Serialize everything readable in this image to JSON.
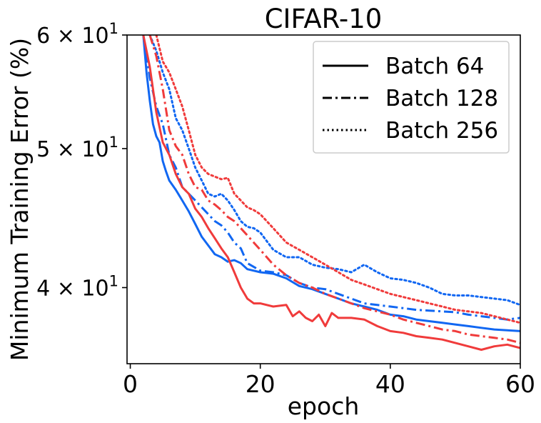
{
  "chart_data": {
    "type": "line",
    "title": "CIFAR-10",
    "xlabel": "epoch",
    "ylabel": "Minimum Training Error (%)",
    "xlim": [
      -0.5,
      60
    ],
    "ylim": [
      35.4,
      60
    ],
    "yscale": "log",
    "grid": false,
    "legend_position": "top-right",
    "x_ticks": [
      0,
      20,
      40,
      60
    ],
    "x_tick_labels": [
      "0",
      "20",
      "40",
      "60"
    ],
    "y_ticks": [
      40,
      50,
      60
    ],
    "y_tick_labels": [
      "4 × 10",
      "5 × 10",
      "6 × 10"
    ],
    "y_tick_exponent": "1",
    "legend": [
      {
        "label": "Batch 64",
        "style": "solid"
      },
      {
        "label": "Batch 128",
        "style": "dashdot"
      },
      {
        "label": "Batch 256",
        "style": "dotted"
      }
    ],
    "colors": {
      "blue": "#1167f2",
      "red": "#f03b3b"
    },
    "series": [
      {
        "color": "blue",
        "style": "solid",
        "x": [
          2,
          2.5,
          3,
          3.5,
          4,
          4.5,
          5,
          5.5,
          6,
          7,
          8,
          9,
          10,
          11,
          12,
          13,
          14,
          15,
          16,
          17,
          18,
          20,
          22,
          24,
          26,
          28,
          30,
          32,
          34,
          36,
          38,
          40,
          42,
          44,
          46,
          48,
          50,
          52,
          54,
          56,
          58,
          60
        ],
        "y": [
          60,
          56.5,
          54,
          52,
          51,
          50.5,
          49,
          48.2,
          47.5,
          46.8,
          46,
          45.2,
          44.3,
          43.4,
          42.8,
          42.2,
          42.0,
          41.7,
          41.8,
          41.6,
          41.2,
          41.0,
          40.9,
          40.6,
          40.1,
          39.9,
          39.6,
          39.3,
          39.0,
          38.8,
          38.6,
          38.3,
          38.2,
          38.0,
          37.9,
          37.8,
          37.7,
          37.6,
          37.5,
          37.4,
          37.35,
          37.3
        ]
      },
      {
        "color": "blue",
        "style": "dashdot",
        "x": [
          2,
          3,
          4,
          5,
          6,
          7,
          8,
          9,
          10,
          11,
          12,
          13,
          14,
          15,
          16,
          17,
          18,
          20,
          22,
          24,
          26,
          28,
          30,
          32,
          34,
          36,
          38,
          40,
          42,
          44,
          46,
          48,
          50,
          52,
          54,
          56,
          58,
          60
        ],
        "y": [
          60,
          56,
          53.5,
          52,
          49.5,
          48.5,
          47,
          46.5,
          46,
          45.5,
          45,
          44.5,
          44.2,
          43.7,
          43,
          42.6,
          41.6,
          41.1,
          41.0,
          40.8,
          40.3,
          40.0,
          39.9,
          39.6,
          39.3,
          39.0,
          38.9,
          38.8,
          38.7,
          38.6,
          38.55,
          38.5,
          38.45,
          38.3,
          38.2,
          38.1,
          38.0,
          38.1
        ]
      },
      {
        "color": "blue",
        "style": "dotted",
        "x": [
          3,
          4,
          5,
          6,
          7,
          8,
          9,
          10,
          11,
          12,
          13,
          14,
          15,
          16,
          17,
          18,
          19,
          20,
          22,
          24,
          26,
          28,
          30,
          32,
          34,
          36,
          38,
          40,
          42,
          44,
          46,
          48,
          50,
          52,
          54,
          56,
          58,
          60
        ],
        "y": [
          60,
          58.5,
          56.5,
          55,
          52.5,
          51.5,
          50,
          48.5,
          47.5,
          46.5,
          46.3,
          46.5,
          46.0,
          45.3,
          44.5,
          44.1,
          44.0,
          43.7,
          42.5,
          42.0,
          42.0,
          41.5,
          41.3,
          41.2,
          41.0,
          41.5,
          41.0,
          40.6,
          40.5,
          40.3,
          40.0,
          39.6,
          39.5,
          39.5,
          39.4,
          39.3,
          39.2,
          38.9
        ]
      },
      {
        "color": "red",
        "style": "solid",
        "x": [
          2,
          3,
          4,
          5,
          6,
          7,
          8,
          9,
          10,
          11,
          12,
          13,
          14,
          15,
          16,
          17,
          18,
          19,
          20,
          22,
          24,
          25,
          26,
          27,
          28,
          29,
          30,
          31,
          32,
          34,
          36,
          38,
          40,
          42,
          44,
          46,
          48,
          50,
          52,
          54,
          56,
          58,
          60
        ],
        "y": [
          60,
          57,
          53,
          50.5,
          49.5,
          48,
          47,
          46.5,
          45.4,
          44.8,
          44.0,
          43.3,
          42.6,
          42.0,
          41.0,
          40.0,
          39.3,
          39.0,
          39.0,
          38.8,
          38.9,
          38.2,
          38.5,
          38.1,
          37.9,
          38.3,
          37.6,
          38.4,
          38.1,
          38.1,
          38.0,
          37.6,
          37.3,
          37.2,
          37.0,
          36.9,
          36.8,
          36.6,
          36.4,
          36.2,
          36.4,
          36.5,
          36.3
        ]
      },
      {
        "color": "red",
        "style": "dashdot",
        "x": [
          3,
          4,
          5,
          6,
          7,
          8,
          9,
          10,
          11,
          12,
          13,
          14,
          15,
          16,
          17,
          18,
          20,
          22,
          24,
          26,
          28,
          30,
          32,
          34,
          36,
          38,
          40,
          42,
          44,
          46,
          48,
          50,
          52,
          54,
          56,
          58,
          60
        ],
        "y": [
          60,
          58,
          55,
          51.5,
          50.2,
          49.5,
          48,
          47,
          46.8,
          46.0,
          45.7,
          45.3,
          44.8,
          44.5,
          44.0,
          43.5,
          42.5,
          41.5,
          40.8,
          40.3,
          40.0,
          39.6,
          39.3,
          39.0,
          38.7,
          38.5,
          38.3,
          38.0,
          37.8,
          37.6,
          37.4,
          37.3,
          37.1,
          37.0,
          36.9,
          36.8,
          36.6
        ]
      },
      {
        "color": "red",
        "style": "dotted",
        "x": [
          4,
          5,
          6,
          7,
          8,
          9,
          10,
          11,
          12,
          13,
          14,
          15,
          16,
          17,
          18,
          19,
          20,
          22,
          24,
          26,
          28,
          30,
          32,
          34,
          36,
          38,
          40,
          42,
          44,
          46,
          48,
          50,
          52,
          54,
          56,
          58,
          60
        ],
        "y": [
          60,
          57.5,
          56.5,
          55,
          53.5,
          51.5,
          49.5,
          48.5,
          48.0,
          47.8,
          47.6,
          47.7,
          46.5,
          46.0,
          45.5,
          45.3,
          45.0,
          44.0,
          43.0,
          42.5,
          42.0,
          41.5,
          41.0,
          40.5,
          40.2,
          39.9,
          39.6,
          39.4,
          39.2,
          39.0,
          38.8,
          38.6,
          38.5,
          38.4,
          38.2,
          38.0,
          37.8
        ]
      }
    ]
  }
}
